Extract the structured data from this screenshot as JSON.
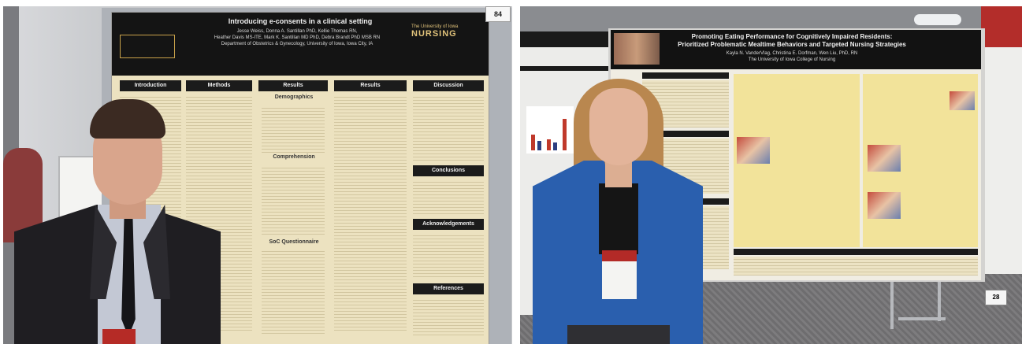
{
  "left_photo": {
    "poster_number": "84",
    "poster": {
      "title": "Introducing e-consents in a clinical setting",
      "authors_line1": "Jesse Weiss, Donna A. Santillan PhD, Kellie Thomas RN,",
      "authors_line2": "Heather Davis MS-ITE, Mark K. Santillan MD PhD, Debra Brandt PhD MSB RN",
      "affiliation": "Department of Obstetrics & Gynecology, University of Iowa, Iowa City, IA",
      "logo_right_line1": "The University of Iowa",
      "logo_right_line2": "NURSING",
      "columns": [
        "Introduction",
        "Methods",
        "Results",
        "Results",
        "Discussion"
      ],
      "section_demographics": "Demographics",
      "section_comprehension": "Comprehension",
      "section_conclusions": "Conclusions",
      "section_acknowledgements": "Acknowledgements",
      "section_references": "References",
      "section_questionnaire": "SoC Questionnaire"
    }
  },
  "right_photo": {
    "poster_number": "28",
    "poster": {
      "title_line1": "Promoting Eating Performance for Cognitively Impaired Residents:",
      "title_line2": "Prioritized Problematic Mealtime Behaviors and Targeted Nursing Strategies",
      "authors": "Kayla N. VanderVlag, Christina E. Dorfman, Wen Liu, PhD, RN",
      "affiliation": "The University of Iowa College of Nursing"
    }
  }
}
